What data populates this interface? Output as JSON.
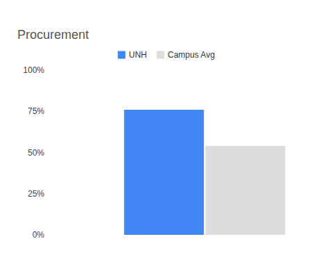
{
  "chart_data": {
    "type": "bar",
    "title": "Procurement",
    "categories": [
      null
    ],
    "series": [
      {
        "name": "UNH",
        "color": "#4285f4",
        "values": [
          76
        ]
      },
      {
        "name": "Campus Avg",
        "color": "#dddddd",
        "values": [
          54
        ]
      }
    ],
    "ylim": [
      0,
      100
    ],
    "yticks": [
      {
        "value": 0,
        "label": "0%"
      },
      {
        "value": 25,
        "label": "25%"
      },
      {
        "value": 50,
        "label": "50%"
      },
      {
        "value": 75,
        "label": "75%"
      },
      {
        "value": 100,
        "label": "100%"
      }
    ],
    "grid": false,
    "legend": "top"
  }
}
